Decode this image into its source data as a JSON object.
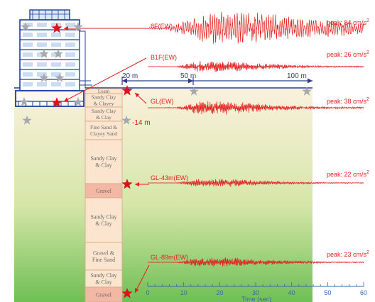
{
  "colors": {
    "trace": "#e02020",
    "sensor_active": "#e0101a",
    "sensor_inactive": "#a8a8b0",
    "building": "#1f3f9a",
    "dimension": "#2a3a8a",
    "ground_top": "#fbf1de",
    "ground_bottom": "#6fbf55",
    "column_fill": "#fbe5cf",
    "column_gravel": "#f2b8a4",
    "column_text": "#6a6a6a",
    "axis": "#3a6aa8"
  },
  "distances": [
    "20 m",
    "50 m",
    "100 m"
  ],
  "depth_label": "-14 m",
  "layers": [
    {
      "name": "Loam"
    },
    {
      "name": "Sandy Clay & Clayey Sand"
    },
    {
      "name": "Sandy Clay & Clay"
    },
    {
      "name": "Fine Sand & Clayey Sand"
    },
    {
      "name": "Sandy Clay & Clay"
    },
    {
      "name": "Gravel"
    },
    {
      "name": "Sandy Clay & Clay"
    },
    {
      "name": "Gravel & Fine Sand"
    },
    {
      "name": "Sandy Clay & Clay"
    },
    {
      "name": "Gravel"
    }
  ],
  "traces": [
    {
      "label": "8F(EW)",
      "peak_text": "peak: 84 cm/s",
      "peak_exp": "2",
      "amp": 84
    },
    {
      "label": "B1F(EW)",
      "peak_text": "peak: 26 cm/s",
      "peak_exp": "2",
      "amp": 26
    },
    {
      "label": "GL(EW)",
      "peak_text": "peak: 38 cm/s",
      "peak_exp": "2",
      "amp": 38
    },
    {
      "label": "GL-43m(EW)",
      "peak_text": "peak: 22 cm/s",
      "peak_exp": "2",
      "amp": 22
    },
    {
      "label": "GL-89m(EW)",
      "peak_text": "peak: 23 cm/s",
      "peak_exp": "2",
      "amp": 23
    }
  ],
  "time_axis": {
    "ticks": [
      "0",
      "10",
      "20",
      "30",
      "40",
      "50",
      "60"
    ],
    "label": "Time (sec)",
    "min": 0,
    "max": 60
  }
}
